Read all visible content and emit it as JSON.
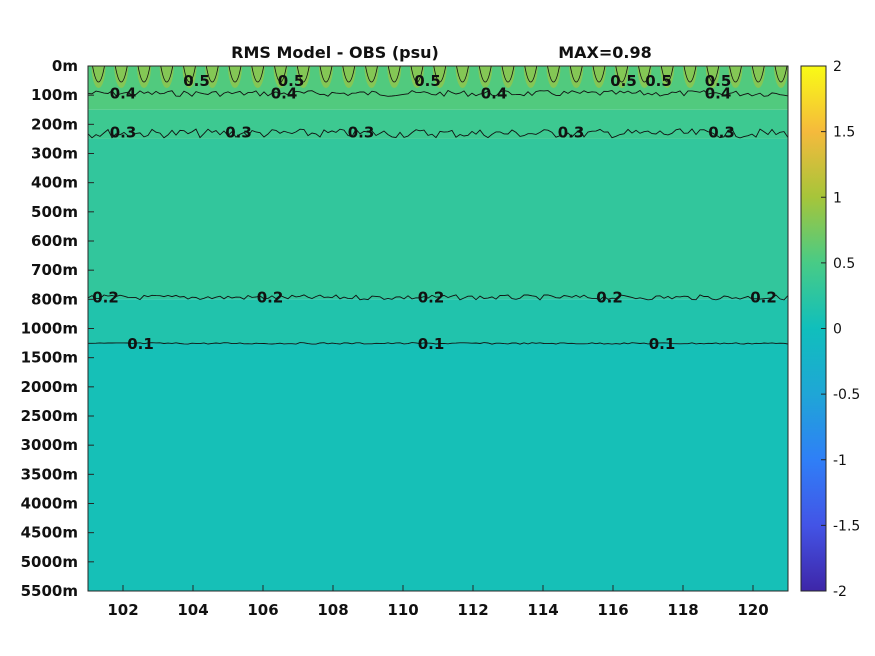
{
  "chart_data": {
    "type": "heatmap",
    "title": "RMS Model - OBS (psu)",
    "annotation": "MAX=0.98",
    "x_ticks": [
      "102",
      "104",
      "106",
      "108",
      "110",
      "112",
      "114",
      "116",
      "118",
      "120"
    ],
    "x_tick_values": [
      102,
      104,
      106,
      108,
      110,
      112,
      114,
      116,
      118,
      120
    ],
    "xlim": [
      101,
      121
    ],
    "y_ticks": [
      "0m",
      "100m",
      "200m",
      "300m",
      "400m",
      "500m",
      "600m",
      "700m",
      "800m",
      "1000m",
      "1500m",
      "2000m",
      "2500m",
      "3000m",
      "3500m",
      "4000m",
      "4500m",
      "5000m",
      "5500m"
    ],
    "y_tick_values": [
      0,
      100,
      200,
      300,
      400,
      500,
      600,
      700,
      800,
      1000,
      1500,
      2000,
      2500,
      3000,
      3500,
      4000,
      4500,
      5000,
      5500
    ],
    "colorbar": {
      "range": [
        -2,
        2
      ],
      "ticks": [
        "2",
        "1.5",
        "1",
        "0.5",
        "0",
        "-0.5",
        "-1",
        "-1.5",
        "-2"
      ],
      "tick_values": [
        2,
        1.5,
        1,
        0.5,
        0,
        -0.5,
        -1,
        -1.5,
        -2
      ],
      "colormap": "parula"
    },
    "contours": [
      {
        "level": 0.5,
        "label": "0.5",
        "depth_m": 0,
        "labels_at_lon": [
          104.1,
          106.8,
          110.7,
          116.3,
          117.3,
          119.0
        ]
      },
      {
        "level": 0.4,
        "label": "0.4",
        "depth_m": 90,
        "labels_at_lon": [
          102.0,
          106.6,
          112.6,
          119.0
        ]
      },
      {
        "level": 0.3,
        "label": "0.3",
        "depth_m": 225,
        "labels_at_lon": [
          102.0,
          105.3,
          108.8,
          114.8,
          119.1
        ]
      },
      {
        "level": 0.2,
        "label": "0.2",
        "depth_m": 790,
        "labels_at_lon": [
          101.5,
          106.2,
          110.8,
          115.9,
          120.3
        ]
      },
      {
        "level": 0.1,
        "label": "0.1",
        "depth_m": 1250,
        "labels_at_lon": [
          102.5,
          110.8,
          117.4
        ]
      }
    ],
    "field": {
      "surface_max": 0.98,
      "bands": [
        {
          "top_m": 0,
          "bottom_m": 150,
          "value": 0.55
        },
        {
          "top_m": 150,
          "bottom_m": 250,
          "value": 0.4
        },
        {
          "top_m": 250,
          "bottom_m": 800,
          "value": 0.3
        },
        {
          "top_m": 800,
          "bottom_m": 1250,
          "value": 0.15
        },
        {
          "top_m": 1250,
          "bottom_m": 5500,
          "value": 0.05
        }
      ]
    }
  }
}
